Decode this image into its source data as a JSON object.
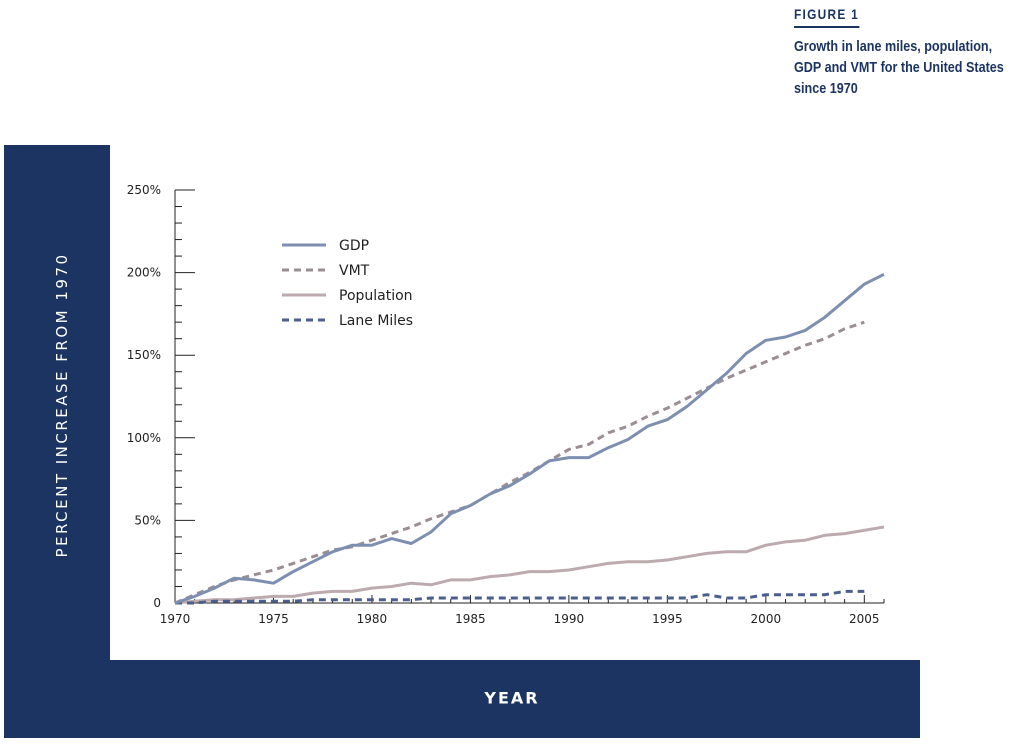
{
  "figure": {
    "label": "FIGURE 1",
    "description": "Growth in lane miles, population, GDP and VMT for the United States since 1970"
  },
  "colors": {
    "frame": "#1b3461",
    "gdp": "#7d8fb0",
    "vmt": "#9a8d93",
    "population": "#bdaaae",
    "lane_miles": "#4a5f8f"
  },
  "chart_data": {
    "type": "line",
    "xlabel": "YEAR",
    "ylabel": "PERCENT INCREASE FROM 1970",
    "xlim": [
      1970,
      2006
    ],
    "ylim": [
      0,
      250
    ],
    "x_ticks": [
      1970,
      1975,
      1980,
      1985,
      1990,
      1995,
      2000,
      2005
    ],
    "y_ticks": [
      0,
      50,
      100,
      150,
      200,
      250
    ],
    "y_tick_labels": [
      "0",
      "50%",
      "100%",
      "150%",
      "200%",
      "250%"
    ],
    "legend_position": "upper-left",
    "grid": false,
    "series": [
      {
        "name": "GDP",
        "style": "solid",
        "x": [
          1970,
          1971,
          1972,
          1973,
          1974,
          1975,
          1976,
          1977,
          1978,
          1979,
          1980,
          1981,
          1982,
          1983,
          1984,
          1985,
          1986,
          1987,
          1988,
          1989,
          1990,
          1991,
          1992,
          1993,
          1994,
          1995,
          1996,
          1997,
          1998,
          1999,
          2000,
          2001,
          2002,
          2003,
          2004,
          2005,
          2006
        ],
        "y": [
          0,
          4,
          9,
          15,
          14,
          12,
          19,
          25,
          31,
          35,
          35,
          39,
          36,
          43,
          54,
          59,
          66,
          71,
          78,
          86,
          88,
          88,
          94,
          99,
          107,
          111,
          119,
          129,
          139,
          151,
          159,
          161,
          165,
          173,
          183,
          193,
          199
        ]
      },
      {
        "name": "VMT",
        "style": "dashed",
        "x": [
          1970,
          1971,
          1972,
          1973,
          1974,
          1975,
          1976,
          1977,
          1978,
          1979,
          1980,
          1981,
          1982,
          1983,
          1984,
          1985,
          1986,
          1987,
          1988,
          1989,
          1990,
          1991,
          1992,
          1993,
          1994,
          1995,
          1996,
          1997,
          1998,
          1999,
          2000,
          2001,
          2002,
          2003,
          2004,
          2005
        ],
        "y": [
          0,
          5,
          10,
          14,
          17,
          20,
          24,
          28,
          32,
          34,
          38,
          42,
          46,
          51,
          55,
          59,
          66,
          73,
          79,
          86,
          93,
          96,
          103,
          107,
          113,
          118,
          124,
          130,
          136,
          141,
          146,
          151,
          156,
          160,
          166,
          170
        ]
      },
      {
        "name": "Population",
        "style": "solid",
        "x": [
          1970,
          1971,
          1972,
          1973,
          1974,
          1975,
          1976,
          1977,
          1978,
          1979,
          1980,
          1981,
          1982,
          1983,
          1984,
          1985,
          1986,
          1987,
          1988,
          1989,
          1990,
          1991,
          1992,
          1993,
          1994,
          1995,
          1996,
          1997,
          1998,
          1999,
          2000,
          2001,
          2002,
          2003,
          2004,
          2005,
          2006
        ],
        "y": [
          0,
          1,
          2,
          2,
          3,
          4,
          4,
          6,
          7,
          7,
          9,
          10,
          12,
          11,
          14,
          14,
          16,
          17,
          19,
          19,
          20,
          22,
          24,
          25,
          25,
          26,
          28,
          30,
          31,
          31,
          35,
          37,
          38,
          41,
          42,
          44,
          46
        ]
      },
      {
        "name": "Lane Miles",
        "style": "dashed",
        "x": [
          1970,
          1971,
          1972,
          1973,
          1974,
          1975,
          1976,
          1977,
          1978,
          1979,
          1980,
          1981,
          1982,
          1983,
          1984,
          1985,
          1986,
          1987,
          1988,
          1989,
          1990,
          1991,
          1992,
          1993,
          1994,
          1995,
          1996,
          1997,
          1998,
          1999,
          2000,
          2001,
          2002,
          2003,
          2004,
          2005
        ],
        "y": [
          0,
          0,
          1,
          1,
          1,
          1,
          1,
          2,
          2,
          2,
          2,
          2,
          2,
          3,
          3,
          3,
          3,
          3,
          3,
          3,
          3,
          3,
          3,
          3,
          3,
          3,
          3,
          5,
          3,
          3,
          5,
          5,
          5,
          5,
          7,
          7
        ]
      }
    ]
  }
}
